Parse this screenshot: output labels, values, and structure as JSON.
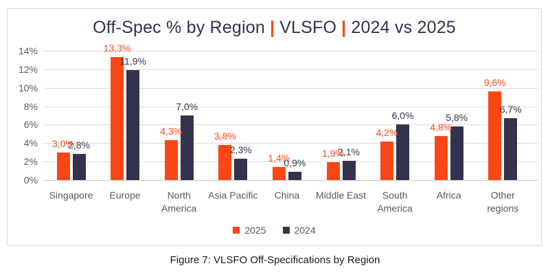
{
  "chart": {
    "title_parts": [
      "Off-Spec % by Region",
      "VLSFO",
      "2024 vs 2025"
    ],
    "title_separator": "|",
    "caption": "Figure 7: VLSFO Off-Specifications by Region"
  },
  "chart_data": {
    "type": "bar",
    "title": "Off-Spec % by Region | VLSFO | 2024 vs 2025",
    "categories": [
      "Singapore",
      "Europe",
      "North America",
      "Asia Pacific",
      "China",
      "Middle East",
      "South America",
      "Africa",
      "Other regions"
    ],
    "series": [
      {
        "name": "2025",
        "color": "#fb4616",
        "values": [
          3.0,
          13.3,
          4.3,
          3.8,
          1.4,
          1.9,
          4.2,
          4.8,
          9.6
        ],
        "labels": [
          "3,0%",
          "13,3%",
          "4,3%",
          "3,8%",
          "1,4%",
          "1,9%",
          "4,2%",
          "4,8%",
          "9,6%"
        ]
      },
      {
        "name": "2024",
        "color": "#33334e",
        "values": [
          2.8,
          11.9,
          7.0,
          2.3,
          0.9,
          2.1,
          6.0,
          5.8,
          6.7
        ],
        "labels": [
          "2,8%",
          "11,9%",
          "7,0%",
          "2,3%",
          "0,9%",
          "2,1%",
          "6,0%",
          "5,8%",
          "6,7%"
        ]
      }
    ],
    "ylim": [
      0,
      14
    ],
    "ytick_step": 2,
    "yticks": [
      "0%",
      "2%",
      "4%",
      "6%",
      "8%",
      "10%",
      "12%",
      "14%"
    ],
    "grid": "horizontal",
    "legend_position": "bottom"
  },
  "colors": {
    "accent_orange": "#fb4616",
    "navy": "#33334e",
    "title_text": "#32324e",
    "axis_text": "#595959",
    "gridline": "#dcdcdc",
    "card_border": "#d9d9d9"
  }
}
